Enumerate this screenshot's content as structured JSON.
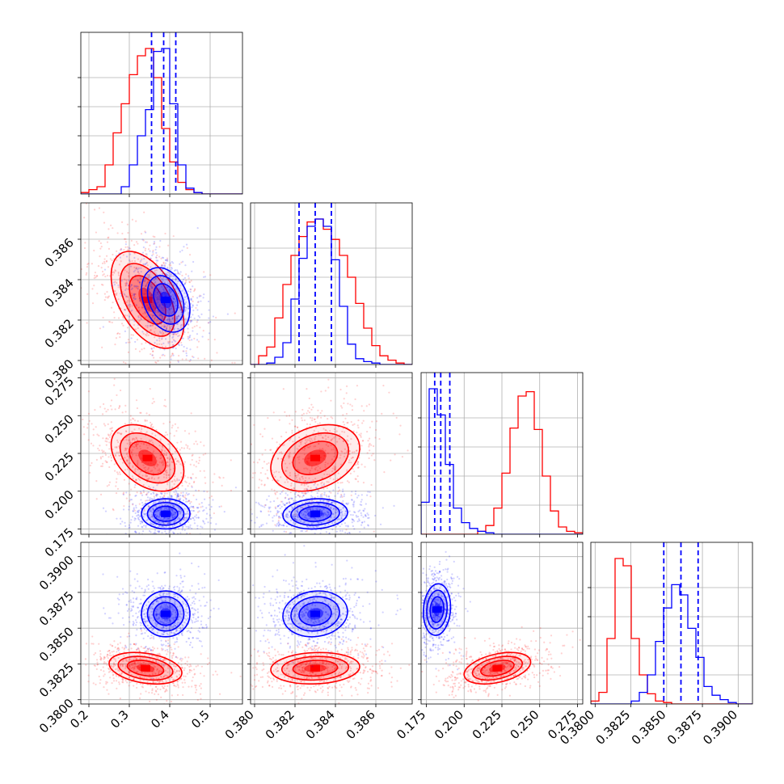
{
  "chart_data": {
    "type": "corner",
    "colors": {
      "series_a": "#ff0000",
      "series_b": "#0000ff"
    },
    "grid": true,
    "ticks": [
      {
        "values": [
          0.2,
          0.3,
          0.4,
          0.5
        ],
        "labels": [
          "0.2",
          "0.3",
          "0.4",
          "0.5"
        ],
        "range": [
          0.18,
          0.58
        ]
      },
      {
        "values": [
          0.38,
          0.382,
          0.384,
          0.386
        ],
        "labels": [
          "0.380",
          "0.382",
          "0.384",
          "0.386"
        ],
        "range": [
          0.3798,
          0.3878
        ]
      },
      {
        "values": [
          0.175,
          0.2,
          0.225,
          0.25,
          0.275
        ],
        "labels": [
          "0.175",
          "0.200",
          "0.225",
          "0.250",
          "0.275"
        ],
        "range": [
          0.1715,
          0.2785
        ]
      },
      {
        "values": [
          0.38,
          0.3825,
          0.385,
          0.3875,
          0.39
        ],
        "labels": [
          "0.3800",
          "0.3825",
          "0.3850",
          "0.3875",
          "0.3900"
        ],
        "range": [
          0.3797,
          0.391
        ]
      }
    ],
    "quantiles_b": [
      [
        0.355,
        0.385,
        0.415
      ],
      [
        0.3822,
        0.383,
        0.3838
      ],
      [
        0.1805,
        0.1845,
        0.1905
      ],
      [
        0.3848,
        0.386,
        0.3872
      ]
    ],
    "hist": {
      "a": [
        {
          "edges_start": 0.18,
          "bin": 0.02,
          "counts": [
            0.01,
            0.03,
            0.05,
            0.2,
            0.42,
            0.62,
            0.82,
            0.95,
            1.0,
            0.8,
            0.45,
            0.22,
            0.08,
            0.03,
            0.01,
            0.0,
            0.0,
            0.0,
            0.0,
            0.0
          ]
        },
        {
          "edges_start": 0.3798,
          "bin": 0.0004,
          "counts": [
            0.0,
            0.06,
            0.12,
            0.32,
            0.55,
            0.75,
            0.88,
            0.98,
            1.0,
            0.93,
            0.86,
            0.75,
            0.6,
            0.42,
            0.25,
            0.13,
            0.06,
            0.03,
            0.01,
            0.0
          ]
        },
        {
          "edges_start": 0.1715,
          "bin": 0.00535,
          "counts": [
            0.0,
            0.0,
            0.0,
            0.0,
            0.0,
            0.0,
            0.0,
            0.02,
            0.06,
            0.18,
            0.42,
            0.73,
            0.95,
            0.98,
            0.72,
            0.4,
            0.16,
            0.05,
            0.02,
            0.01
          ]
        },
        {
          "edges_start": 0.3797,
          "bin": 0.000565,
          "counts": [
            0.02,
            0.08,
            0.45,
            1.0,
            0.95,
            0.45,
            0.2,
            0.07,
            0.02,
            0.01,
            0.0,
            0.0,
            0.0,
            0.0,
            0.0,
            0.0,
            0.0,
            0.0,
            0.0,
            0.0
          ]
        }
      ],
      "b": [
        {
          "edges_start": 0.18,
          "bin": 0.02,
          "counts": [
            0.0,
            0.0,
            0.0,
            0.0,
            0.0,
            0.05,
            0.2,
            0.4,
            0.58,
            0.98,
            1.0,
            0.62,
            0.2,
            0.04,
            0.01,
            0.0,
            0.0,
            0.0,
            0.0,
            0.0
          ]
        },
        {
          "edges_start": 0.3798,
          "bin": 0.0004,
          "counts": [
            0.0,
            0.0,
            0.01,
            0.05,
            0.15,
            0.45,
            0.73,
            0.95,
            1.0,
            0.95,
            0.72,
            0.4,
            0.14,
            0.04,
            0.02,
            0.01,
            0.0,
            0.0,
            0.0,
            0.0
          ]
        },
        {
          "edges_start": 0.1715,
          "bin": 0.00535,
          "counts": [
            0.22,
            1.0,
            0.82,
            0.48,
            0.18,
            0.08,
            0.04,
            0.02,
            0.01,
            0.0,
            0.0,
            0.0,
            0.0,
            0.0,
            0.0,
            0.0,
            0.0,
            0.0,
            0.0,
            0.0
          ]
        },
        {
          "edges_start": 0.3797,
          "bin": 0.000565,
          "counts": [
            0.0,
            0.0,
            0.0,
            0.0,
            0.0,
            0.02,
            0.08,
            0.2,
            0.43,
            0.66,
            0.82,
            0.75,
            0.52,
            0.32,
            0.12,
            0.06,
            0.03,
            0.01,
            0.0,
            0.0
          ]
        }
      ]
    },
    "blobs": {
      "a": [
        {
          "row": 1,
          "col": 0,
          "cx": 0.345,
          "cy": 0.383,
          "sx": 0.045,
          "sy": 0.0012,
          "rho": -0.5
        },
        {
          "row": 2,
          "col": 0,
          "cx": 0.345,
          "cy": 0.222,
          "sx": 0.045,
          "sy": 0.011,
          "rho": -0.4
        },
        {
          "row": 2,
          "col": 1,
          "cx": 0.383,
          "cy": 0.222,
          "sx": 0.0011,
          "sy": 0.011,
          "rho": 0.3
        },
        {
          "row": 3,
          "col": 0,
          "cx": 0.34,
          "cy": 0.3822,
          "sx": 0.045,
          "sy": 0.00055,
          "rho": -0.3
        },
        {
          "row": 3,
          "col": 1,
          "cx": 0.383,
          "cy": 0.3822,
          "sx": 0.0011,
          "sy": 0.00055,
          "rho": 0.1
        },
        {
          "row": 3,
          "col": 2,
          "cx": 0.222,
          "cy": 0.3822,
          "sx": 0.011,
          "sy": 0.00055,
          "rho": 0.4
        }
      ],
      "b": [
        {
          "row": 1,
          "col": 0,
          "cx": 0.39,
          "cy": 0.383,
          "sx": 0.03,
          "sy": 0.0008,
          "rho": -0.3
        },
        {
          "row": 2,
          "col": 0,
          "cx": 0.39,
          "cy": 0.185,
          "sx": 0.03,
          "sy": 0.005,
          "rho": 0.0
        },
        {
          "row": 2,
          "col": 1,
          "cx": 0.383,
          "cy": 0.185,
          "sx": 0.0008,
          "sy": 0.005,
          "rho": 0.1
        },
        {
          "row": 3,
          "col": 0,
          "cx": 0.39,
          "cy": 0.386,
          "sx": 0.03,
          "sy": 0.0008,
          "rho": 0.0
        },
        {
          "row": 3,
          "col": 1,
          "cx": 0.383,
          "cy": 0.386,
          "sx": 0.0008,
          "sy": 0.0008,
          "rho": 0.1
        },
        {
          "row": 3,
          "col": 2,
          "cx": 0.182,
          "cy": 0.3863,
          "sx": 0.0045,
          "sy": 0.0009,
          "rho": 0.1
        }
      ]
    }
  }
}
